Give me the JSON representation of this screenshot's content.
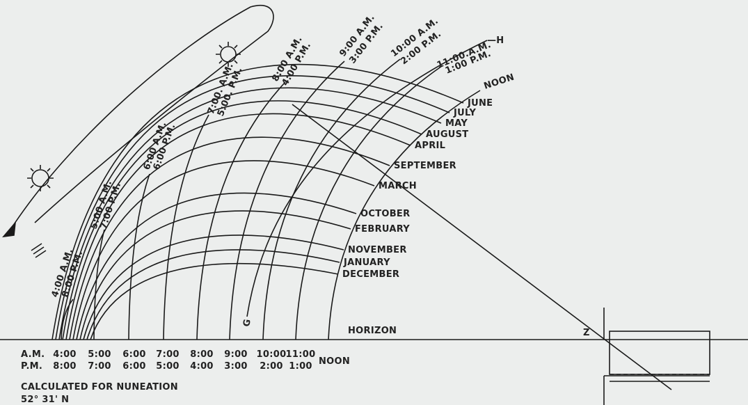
{
  "hour_labels": [
    {
      "am": "4:00 A.M.",
      "pm": "8:00 P.M."
    },
    {
      "am": "5:00 A.M.",
      "pm": "7:00 P.M."
    },
    {
      "am": "6:00 A.M.",
      "pm": "6:00 P.M."
    },
    {
      "am": "7:00. A.M.",
      "pm": "5:00. P.M."
    },
    {
      "am": "8:00 A.M.",
      "pm": "4:00 P.M."
    },
    {
      "am": "9:00 A.M.",
      "pm": "3:00 P.M."
    },
    {
      "am": "10:00 A.M.",
      "pm": "2:00 P.M."
    },
    {
      "am": "11:00.A.M.",
      "pm": "1:00 P.M."
    }
  ],
  "noon_label": "NOON",
  "months": [
    "JUNE",
    "JULY",
    "MAY",
    "AUGUST",
    "APRIL",
    "SEPTEMBER",
    "MARCH",
    "OCTOBER",
    "FEBRUARY",
    "NOVEMBER",
    "JANUARY",
    "DECEMBER"
  ],
  "horizon": "HORIZON",
  "markers": {
    "z": "Z",
    "g": "G",
    "h": "—H"
  },
  "scale": {
    "am_label": "A.M.",
    "pm_label": "P.M.",
    "am": [
      "4:00",
      "5:00",
      "6:00",
      "7:00",
      "8:00",
      "9:00",
      "10:00",
      "11:00"
    ],
    "pm": [
      "8:00",
      "7:00",
      "6:00",
      "5:00",
      "4:00",
      "3:00",
      "2:00",
      "1:00"
    ],
    "noon": "NOON"
  },
  "caption": [
    "CALCULATED FOR NUNEATION",
    "52° 31' N"
  ]
}
